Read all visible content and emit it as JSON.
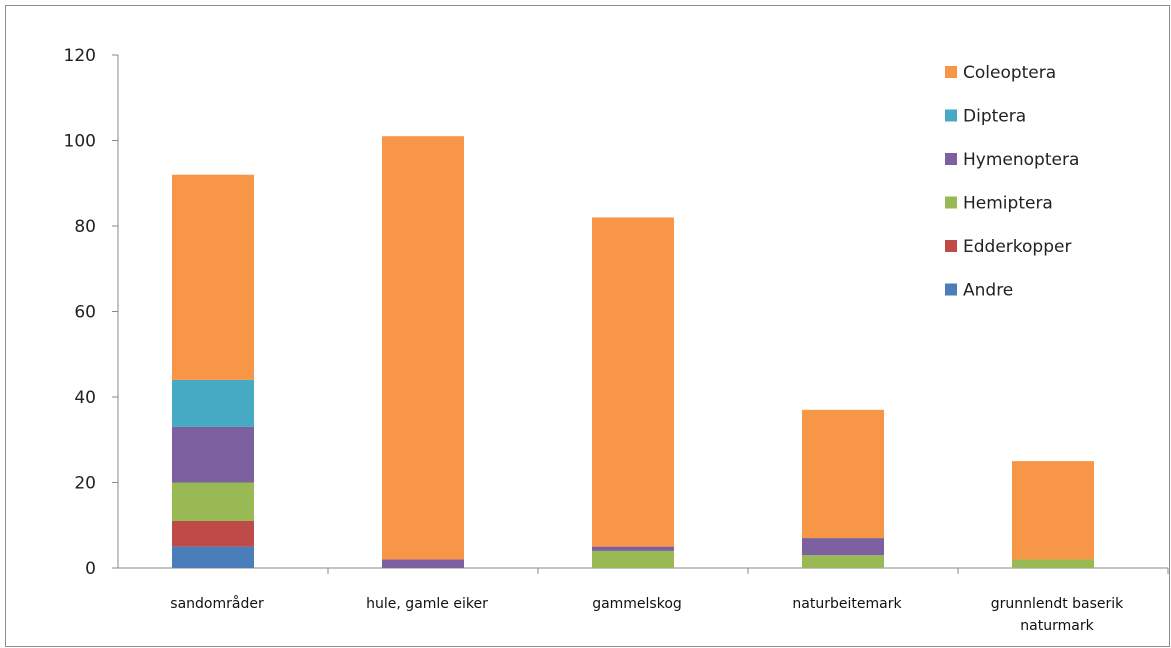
{
  "chart_data": {
    "type": "bar",
    "stacked": true,
    "categories": [
      [
        "sandområder"
      ],
      [
        "hule, gamle eiker"
      ],
      [
        "gammelskog"
      ],
      [
        "naturbeitemark"
      ],
      [
        "grunnlendt baserik",
        "naturmark"
      ]
    ],
    "series": [
      {
        "name": "Andre",
        "color": "#4a7ebb",
        "values": [
          5,
          0,
          0,
          0,
          0
        ]
      },
      {
        "name": "Edderkopper",
        "color": "#be4b48",
        "values": [
          6,
          0,
          0,
          0,
          0
        ]
      },
      {
        "name": "Hemiptera",
        "color": "#98b954",
        "values": [
          9,
          0,
          4,
          3,
          2
        ]
      },
      {
        "name": "Hymenoptera",
        "color": "#7d60a0",
        "values": [
          13,
          2,
          1,
          4,
          0
        ]
      },
      {
        "name": "Diptera",
        "color": "#46aac4",
        "values": [
          11,
          0,
          0,
          0,
          0
        ]
      },
      {
        "name": "Coleoptera",
        "color": "#f79646",
        "values": [
          48,
          99,
          77,
          30,
          23
        ]
      }
    ],
    "ylim": [
      0,
      120
    ],
    "yticks": [
      0,
      20,
      40,
      60,
      80,
      100,
      120
    ],
    "xlabel": "",
    "ylabel": "",
    "title": "",
    "legend_position": "top-right",
    "grid": false
  }
}
